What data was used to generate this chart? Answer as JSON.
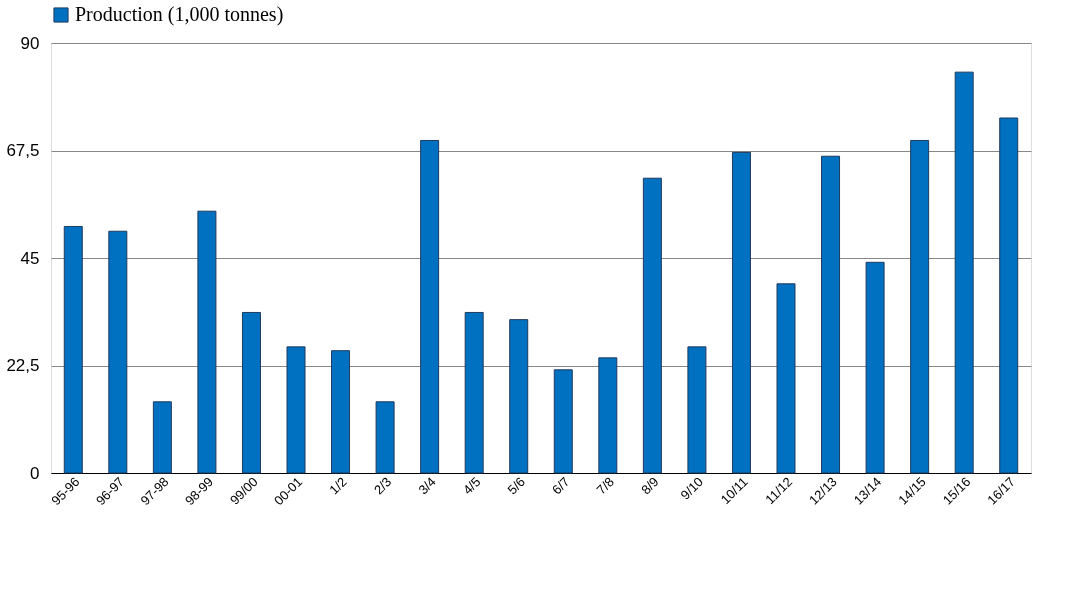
{
  "chart_data": {
    "type": "bar",
    "categories": [
      "95-96",
      "96-97",
      "97-98",
      "98-99",
      "99/00",
      "00-01",
      "1/2",
      "2/3",
      "3/4",
      "4/5",
      "5/6",
      "6/7",
      "7/8",
      "8/9",
      "9/10",
      "10/11",
      "11/12",
      "12/13",
      "13/14",
      "14/15",
      "15/16",
      "16/17"
    ],
    "series": [
      {
        "name": "Production (1,000 tonnes)",
        "color": "#0070c0",
        "values": [
          51.6,
          50.6,
          14.9,
          54.8,
          33.6,
          26.4,
          25.6,
          14.9,
          69.6,
          33.6,
          32.1,
          21.6,
          24.1,
          61.7,
          26.4,
          67.1,
          39.6,
          66.3,
          44.1,
          69.6,
          83.9,
          74.3
        ]
      }
    ],
    "ylim": [
      0,
      90
    ],
    "yticks": [
      0,
      {
        "value": 22.5,
        "label": "22,5"
      },
      45,
      {
        "value": 67.5,
        "label": "67,5"
      },
      90
    ],
    "grid": "y",
    "legend": "top"
  }
}
